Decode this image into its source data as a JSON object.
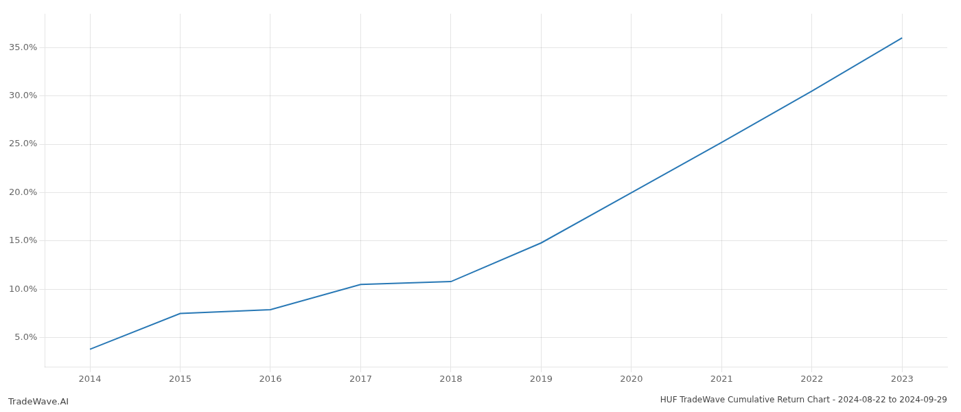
{
  "chart_data": {
    "type": "line",
    "title": "HUF TradeWave Cumulative Return Chart - 2024-08-22 to 2024-09-29",
    "annotations": [
      "TradeWave.AI"
    ],
    "x": [
      2014,
      2015,
      2016,
      2017,
      2018,
      2019,
      2020,
      2021,
      2022,
      2023
    ],
    "values": [
      0.038,
      0.075,
      0.079,
      0.105,
      0.108,
      0.148,
      0.2,
      0.252,
      0.305,
      0.36
    ],
    "color": "#2878b5",
    "xlim": [
      2013.5,
      2023.5
    ],
    "ylim": [
      0.02,
      0.385
    ],
    "xticks": [
      2014,
      2015,
      2016,
      2017,
      2018,
      2019,
      2020,
      2021,
      2022,
      2023
    ],
    "yticks": [
      {
        "value": 0.05,
        "label": "5.0%"
      },
      {
        "value": 0.1,
        "label": "10.0%"
      },
      {
        "value": 0.15,
        "label": "15.0%"
      },
      {
        "value": 0.2,
        "label": "20.0%"
      },
      {
        "value": 0.25,
        "label": "25.0%"
      },
      {
        "value": 0.3,
        "label": "30.0%"
      },
      {
        "value": 0.35,
        "label": "35.0%"
      }
    ],
    "grid": true
  }
}
